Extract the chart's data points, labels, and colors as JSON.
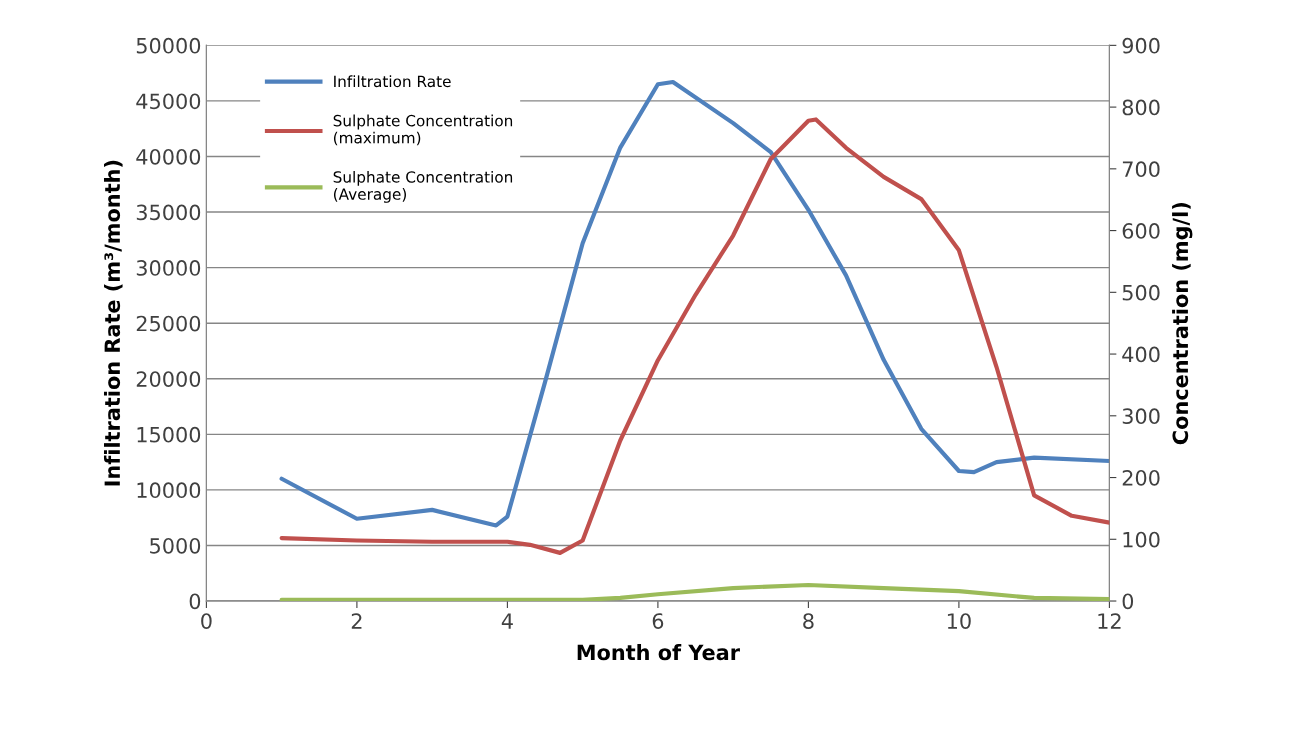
{
  "chart_data": {
    "type": "line",
    "xlabel": "Month of Year",
    "ylabel": "Infiltration Rate (m³/month)",
    "y2label": "Concentration (mg/l)",
    "xlim": [
      0,
      12
    ],
    "xticks": [
      0,
      2,
      4,
      6,
      8,
      10,
      12
    ],
    "ylim": [
      0,
      50000
    ],
    "yticks": [
      0,
      5000,
      10000,
      15000,
      20000,
      25000,
      30000,
      35000,
      40000,
      45000,
      50000
    ],
    "y2lim": [
      0,
      900
    ],
    "y2ticks": [
      0,
      100,
      200,
      300,
      400,
      500,
      600,
      700,
      800,
      900
    ],
    "grid": "y",
    "legend": "top left",
    "marker": "none",
    "line_style": "solid",
    "series": [
      {
        "name": "Infiltration Rate",
        "color": "#4f81bd",
        "x": [
          1,
          2,
          3,
          3.85,
          4,
          4.5,
          5,
          5.5,
          6,
          6.2,
          7,
          7.5,
          8,
          8.5,
          9,
          9.5,
          10,
          10.2,
          10.5,
          11,
          12
        ],
        "values": [
          11000,
          7400,
          8200,
          6800,
          7600,
          19700,
          32200,
          40800,
          46500,
          46700,
          43000,
          40400,
          35200,
          29300,
          21700,
          15500,
          11700,
          11600,
          12500,
          12900,
          12600
        ]
      },
      {
        "name": "Sulphate Concentration (maximum)",
        "color": "#c0504d",
        "axis": "y2",
        "x": [
          1,
          2,
          3,
          4,
          4.3,
          4.7,
          5,
          5.5,
          6,
          6.5,
          7,
          7.5,
          8,
          8.1,
          8.5,
          9,
          9.5,
          10,
          10.5,
          11,
          11.5,
          12
        ],
        "values": [
          102,
          98,
          96,
          96,
          91,
          78,
          98,
          260,
          390,
          496,
          592,
          716,
          778,
          780,
          734,
          687,
          651,
          568,
          379,
          171,
          138,
          127
        ]
      },
      {
        "name": "Sulphate Concentration (Average)",
        "color": "#9bbb59",
        "axis": "y2",
        "x": [
          1,
          2,
          3,
          4,
          5,
          5.5,
          6,
          7,
          8,
          9,
          10,
          11,
          12
        ],
        "values": [
          2,
          2,
          2,
          2,
          2,
          5,
          11,
          21,
          26,
          21,
          16,
          5,
          3
        ]
      }
    ]
  }
}
